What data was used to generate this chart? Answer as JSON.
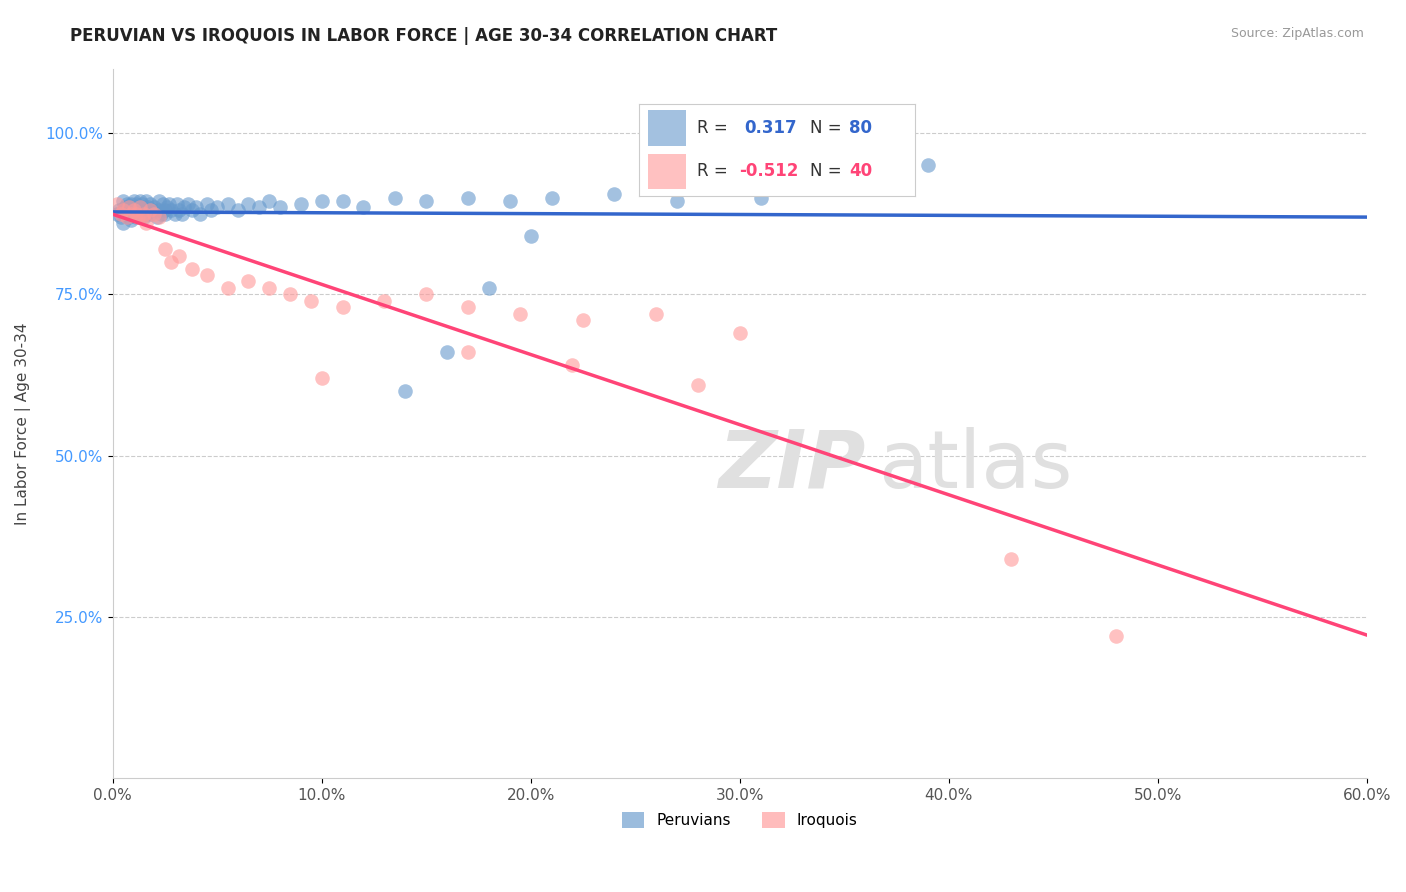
{
  "title": "PERUVIAN VS IROQUOIS IN LABOR FORCE | AGE 30-34 CORRELATION CHART",
  "ylabel": "In Labor Force | Age 30-34",
  "source_text": "Source: ZipAtlas.com",
  "xlim": [
    0.0,
    0.6
  ],
  "ylim": [
    0.0,
    1.1
  ],
  "xtick_labels": [
    "0.0%",
    "10.0%",
    "20.0%",
    "30.0%",
    "40.0%",
    "50.0%",
    "60.0%"
  ],
  "xtick_vals": [
    0.0,
    0.1,
    0.2,
    0.3,
    0.4,
    0.5,
    0.6
  ],
  "ytick_labels": [
    "25.0%",
    "50.0%",
    "75.0%",
    "100.0%"
  ],
  "ytick_vals": [
    0.25,
    0.5,
    0.75,
    1.0
  ],
  "grid_color": "#cccccc",
  "background_color": "#ffffff",
  "peruvian_color": "#6699cc",
  "iroquois_color": "#ff9999",
  "peruvian_line_color": "#3366cc",
  "iroquois_line_color": "#ff4477",
  "watermark_color": "#e0e0e0",
  "legend_R_peruvian": "0.317",
  "legend_N_peruvian": "80",
  "legend_R_iroquois": "-0.512",
  "legend_N_iroquois": "40",
  "peruvian_x": [
    0.002,
    0.003,
    0.004,
    0.005,
    0.005,
    0.006,
    0.006,
    0.007,
    0.007,
    0.008,
    0.008,
    0.009,
    0.009,
    0.01,
    0.01,
    0.01,
    0.011,
    0.011,
    0.011,
    0.012,
    0.012,
    0.013,
    0.013,
    0.014,
    0.014,
    0.015,
    0.015,
    0.016,
    0.016,
    0.017,
    0.018,
    0.018,
    0.019,
    0.02,
    0.021,
    0.022,
    0.022,
    0.023,
    0.024,
    0.025,
    0.025,
    0.026,
    0.027,
    0.028,
    0.03,
    0.031,
    0.032,
    0.033,
    0.034,
    0.036,
    0.038,
    0.04,
    0.042,
    0.045,
    0.047,
    0.05,
    0.055,
    0.06,
    0.065,
    0.07,
    0.075,
    0.08,
    0.09,
    0.1,
    0.11,
    0.12,
    0.135,
    0.15,
    0.17,
    0.19,
    0.21,
    0.24,
    0.27,
    0.31,
    0.18,
    0.2,
    0.16,
    0.14,
    0.35,
    0.39
  ],
  "peruvian_y": [
    0.875,
    0.88,
    0.87,
    0.895,
    0.86,
    0.885,
    0.875,
    0.89,
    0.875,
    0.885,
    0.87,
    0.89,
    0.865,
    0.88,
    0.895,
    0.875,
    0.885,
    0.87,
    0.89,
    0.88,
    0.875,
    0.895,
    0.87,
    0.885,
    0.89,
    0.88,
    0.87,
    0.895,
    0.875,
    0.885,
    0.89,
    0.875,
    0.88,
    0.885,
    0.87,
    0.895,
    0.88,
    0.875,
    0.89,
    0.88,
    0.875,
    0.885,
    0.89,
    0.88,
    0.875,
    0.89,
    0.88,
    0.875,
    0.885,
    0.89,
    0.88,
    0.885,
    0.875,
    0.89,
    0.88,
    0.885,
    0.89,
    0.88,
    0.89,
    0.885,
    0.895,
    0.885,
    0.89,
    0.895,
    0.895,
    0.885,
    0.9,
    0.895,
    0.9,
    0.895,
    0.9,
    0.905,
    0.895,
    0.9,
    0.76,
    0.84,
    0.66,
    0.6,
    0.915,
    0.95
  ],
  "iroquois_x": [
    0.002,
    0.004,
    0.005,
    0.007,
    0.008,
    0.009,
    0.01,
    0.011,
    0.012,
    0.013,
    0.014,
    0.015,
    0.016,
    0.018,
    0.02,
    0.022,
    0.025,
    0.028,
    0.032,
    0.038,
    0.045,
    0.055,
    0.065,
    0.075,
    0.085,
    0.095,
    0.11,
    0.13,
    0.15,
    0.17,
    0.195,
    0.225,
    0.26,
    0.3,
    0.17,
    0.22,
    0.28,
    0.1,
    0.43,
    0.48
  ],
  "iroquois_y": [
    0.89,
    0.875,
    0.88,
    0.87,
    0.885,
    0.875,
    0.88,
    0.875,
    0.87,
    0.885,
    0.87,
    0.875,
    0.86,
    0.88,
    0.875,
    0.87,
    0.82,
    0.8,
    0.81,
    0.79,
    0.78,
    0.76,
    0.77,
    0.76,
    0.75,
    0.74,
    0.73,
    0.74,
    0.75,
    0.73,
    0.72,
    0.71,
    0.72,
    0.69,
    0.66,
    0.64,
    0.61,
    0.62,
    0.34,
    0.22
  ]
}
